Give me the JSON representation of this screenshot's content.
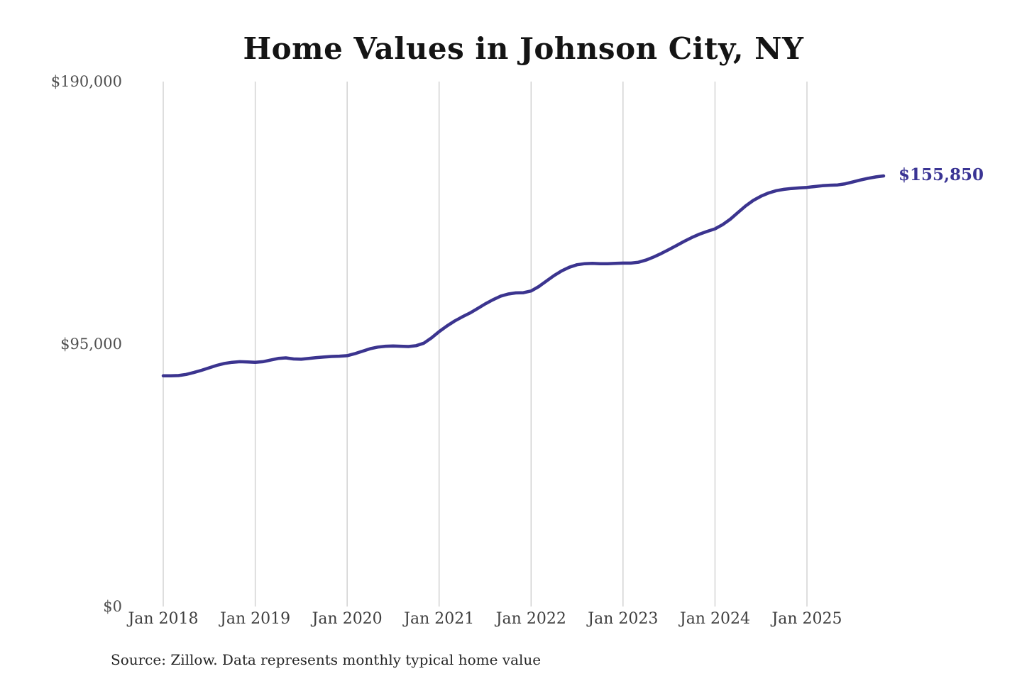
{
  "title": "Home Values in Johnson City, NY",
  "source_note": "Source: Zillow. Data represents monthly typical home value",
  "end_label": "$155,850",
  "colors": {
    "line": "#3b348f",
    "end_label_text": "#3a3494",
    "gridline": "#cccccc",
    "title_text": "#141414",
    "axis_text": "#4f4f4f",
    "background": "#ffffff"
  },
  "y_axis": {
    "ticks": [
      "$190,000",
      "$95,000",
      "$0"
    ],
    "min": 0,
    "max": 190000
  },
  "x_axis": {
    "ticks": [
      "Jan 2018",
      "Jan 2019",
      "Jan 2020",
      "Jan 2021",
      "Jan 2022",
      "Jan 2023",
      "Jan 2024",
      "Jan 2025"
    ]
  },
  "chart_data": {
    "type": "line",
    "title": "Home Values in Johnson City, NY",
    "xlabel": "",
    "ylabel": "",
    "ylim": [
      0,
      190000
    ],
    "grid": "vertical-only",
    "legend": false,
    "series_name": "Typical home value (monthly)",
    "frequency": "monthly",
    "x_start": "2018-01",
    "x_end": "2025-11",
    "months": [
      "2018-01",
      "2018-02",
      "2018-03",
      "2018-04",
      "2018-05",
      "2018-06",
      "2018-07",
      "2018-08",
      "2018-09",
      "2018-10",
      "2018-11",
      "2018-12",
      "2019-01",
      "2019-02",
      "2019-03",
      "2019-04",
      "2019-05",
      "2019-06",
      "2019-07",
      "2019-08",
      "2019-09",
      "2019-10",
      "2019-11",
      "2019-12",
      "2020-01",
      "2020-02",
      "2020-03",
      "2020-04",
      "2020-05",
      "2020-06",
      "2020-07",
      "2020-08",
      "2020-09",
      "2020-10",
      "2020-11",
      "2020-12",
      "2021-01",
      "2021-02",
      "2021-03",
      "2021-04",
      "2021-05",
      "2021-06",
      "2021-07",
      "2021-08",
      "2021-09",
      "2021-10",
      "2021-11",
      "2021-12",
      "2022-01",
      "2022-02",
      "2022-03",
      "2022-04",
      "2022-05",
      "2022-06",
      "2022-07",
      "2022-08",
      "2022-09",
      "2022-10",
      "2022-11",
      "2022-12",
      "2023-01",
      "2023-02",
      "2023-03",
      "2023-04",
      "2023-05",
      "2023-06",
      "2023-07",
      "2023-08",
      "2023-09",
      "2023-10",
      "2023-11",
      "2023-12",
      "2024-01",
      "2024-02",
      "2024-03",
      "2024-04",
      "2024-05",
      "2024-06",
      "2024-07",
      "2024-08",
      "2024-09",
      "2024-10",
      "2024-11",
      "2024-12",
      "2025-01",
      "2025-02",
      "2025-03",
      "2025-04",
      "2025-05",
      "2025-06",
      "2025-07",
      "2025-08",
      "2025-09",
      "2025-10",
      "2025-11"
    ],
    "values": [
      83500,
      83500,
      83600,
      84000,
      84700,
      85500,
      86400,
      87300,
      88000,
      88400,
      88600,
      88500,
      88400,
      88600,
      89200,
      89800,
      90000,
      89600,
      89500,
      89800,
      90100,
      90300,
      90500,
      90600,
      90800,
      91500,
      92400,
      93300,
      93900,
      94200,
      94300,
      94200,
      94100,
      94400,
      95300,
      97200,
      99500,
      101500,
      103300,
      104800,
      106200,
      107800,
      109500,
      111000,
      112300,
      113100,
      113500,
      113600,
      114200,
      115800,
      117800,
      119800,
      121500,
      122800,
      123700,
      124100,
      124200,
      124100,
      124100,
      124200,
      124300,
      124300,
      124600,
      125400,
      126500,
      127800,
      129200,
      130700,
      132200,
      133600,
      134800,
      135800,
      136700,
      138200,
      140200,
      142600,
      145000,
      147000,
      148500,
      149700,
      150500,
      151000,
      151300,
      151500,
      151700,
      152000,
      152300,
      152500,
      152600,
      153000,
      153700,
      154400,
      155000,
      155500,
      155850
    ],
    "last_value": 155850,
    "last_value_label": "$155,850"
  }
}
